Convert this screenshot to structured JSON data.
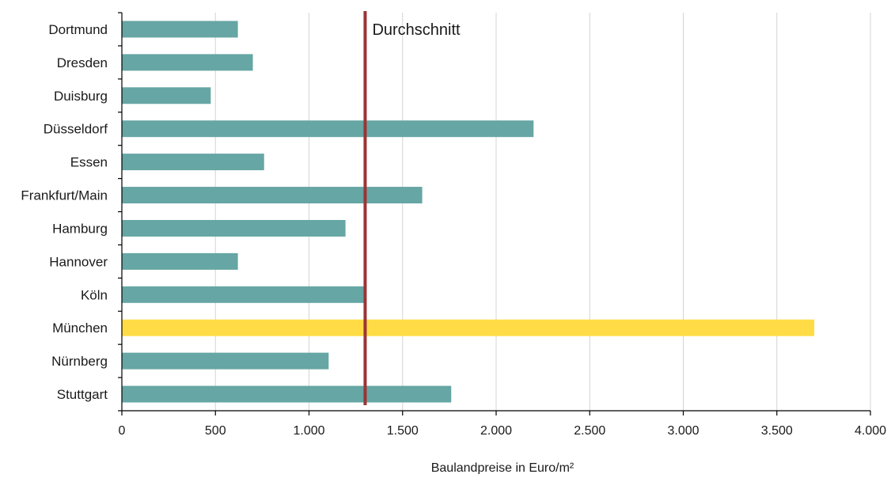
{
  "chart_data": {
    "type": "bar",
    "orientation": "horizontal",
    "categories": [
      "Dortmund",
      "Dresden",
      "Duisburg",
      "Düsseldorf",
      "Essen",
      "Frankfurt/Main",
      "Hamburg",
      "Hannover",
      "Köln",
      "München",
      "Nürnberg",
      "Stuttgart"
    ],
    "values": [
      620,
      700,
      475,
      2200,
      760,
      1605,
      1195,
      620,
      1300,
      3700,
      1105,
      1760
    ],
    "title": "",
    "xlabel": "Baulandpreise in Euro/m²",
    "ylabel": "",
    "xlim": [
      0,
      4000
    ],
    "xticks": [
      0,
      500,
      1000,
      1500,
      2000,
      2500,
      3000,
      3500,
      4000
    ],
    "xtick_labels": [
      "0",
      "500",
      "1.000",
      "1.500",
      "2.000",
      "2.500",
      "3.000",
      "3.500",
      "4.000"
    ],
    "grid": "vertical",
    "reference_line": {
      "label": "Durchschnitt",
      "value": 1300,
      "color": "#9b3434"
    },
    "colors": {
      "bar": "#66a6a4",
      "highlight": "#ffdc45",
      "grid": "#d4d4d4",
      "axis": "#000000"
    },
    "highlight_category": "München"
  }
}
